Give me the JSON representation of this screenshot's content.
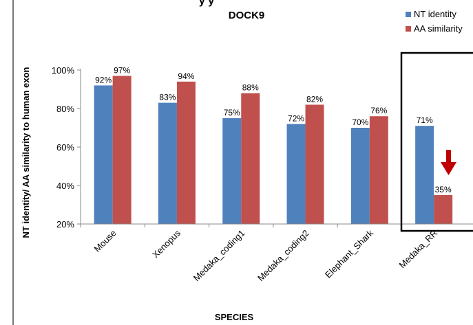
{
  "header_fragment": "y        y",
  "chart_data": {
    "type": "bar",
    "title": "DOCK9",
    "xlabel": "SPECIES",
    "ylabel": "NT identity/ AA similarity to human exon",
    "ylim": [
      20,
      100
    ],
    "yticks": [
      "20%",
      "40%",
      "60%",
      "80%",
      "100%"
    ],
    "ytick_values": [
      20,
      40,
      60,
      80,
      100
    ],
    "grid": false,
    "legend_position": "top-right",
    "categories": [
      "Mouse",
      "Xenopus",
      "Medaka_coding1",
      "Medaka_coding2",
      "Elephant_Shark",
      "Medaka_RR"
    ],
    "series": [
      {
        "name": "NT identity",
        "color": "#4f81bd",
        "values": [
          92,
          83,
          75,
          72,
          70,
          71
        ],
        "labels": [
          "92%",
          "83%",
          "75%",
          "72%",
          "70%",
          "71%"
        ]
      },
      {
        "name": "AA similarity",
        "color": "#c0504d",
        "values": [
          97,
          94,
          88,
          82,
          76,
          35
        ],
        "labels": [
          "97%",
          "94%",
          "88%",
          "82%",
          "76%",
          "35%"
        ]
      }
    ],
    "annotations": {
      "highlight_category": "Medaka_RR",
      "highlight_box": "black rectangle",
      "arrow_color": "#c00000",
      "arrow_target": "AA similarity"
    }
  }
}
